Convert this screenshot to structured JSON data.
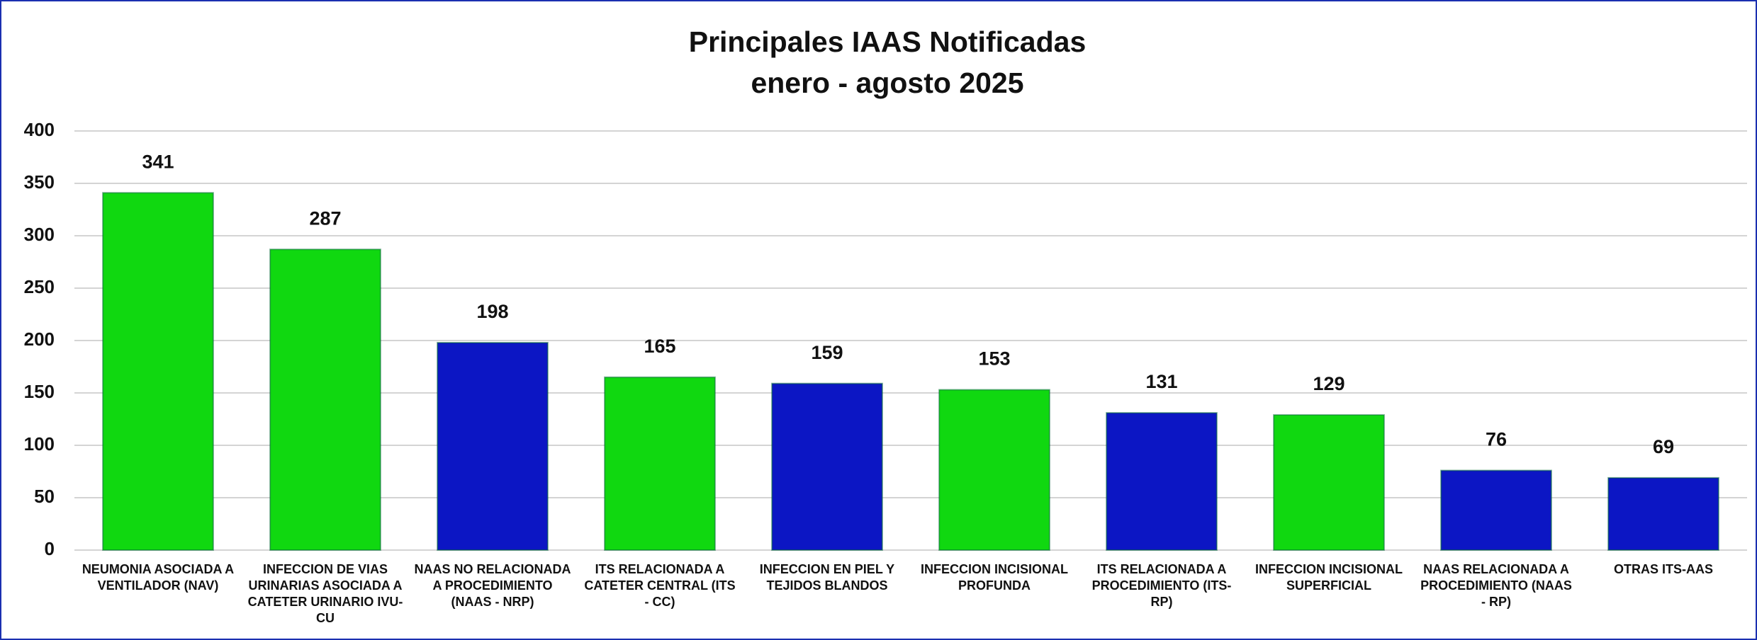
{
  "chart_data": {
    "type": "bar",
    "title": "Principales IAAS Notificadas",
    "subtitle": "enero - agosto 2025",
    "categories": [
      "NEUMONIA ASOCIADA A VENTILADOR (NAV)",
      "INFECCION DE VIAS URINARIAS ASOCIADA A CATETER URINARIO IVU-CU",
      "NAAS NO RELACIONADA A PROCEDIMIENTO (NAAS - NRP)",
      "ITS RELACIONADA A CATETER CENTRAL (ITS - CC)",
      "INFECCION EN PIEL Y TEJIDOS BLANDOS",
      "INFECCION INCISIONAL PROFUNDA",
      "ITS RELACIONADA A PROCEDIMIENTO (ITS-RP)",
      "INFECCION INCISIONAL SUPERFICIAL",
      "NAAS RELACIONADA A PROCEDIMIENTO (NAAS - RP)",
      "OTRAS ITS-AAS"
    ],
    "values": [
      341,
      287,
      198,
      165,
      159,
      153,
      131,
      129,
      76,
      69
    ],
    "colors": [
      "#10d810",
      "#10d810",
      "#0c16c4",
      "#10d810",
      "#0c16c4",
      "#10d810",
      "#0c16c4",
      "#10d810",
      "#0c16c4",
      "#0c16c4"
    ],
    "ylim": [
      0,
      400
    ],
    "yticks": [
      0,
      50,
      100,
      150,
      200,
      250,
      300,
      350,
      400
    ],
    "grid": true
  }
}
